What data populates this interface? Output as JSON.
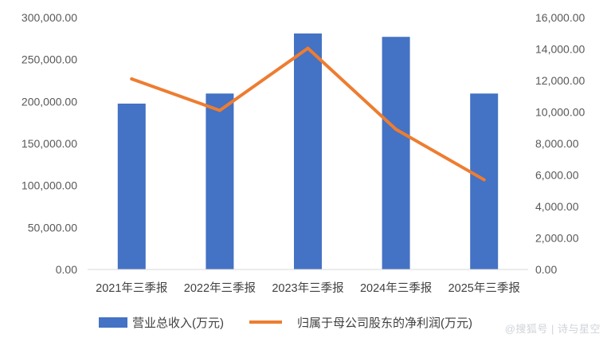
{
  "chart_data": {
    "type": "bar+line",
    "categories": [
      "2021年三季报",
      "2022年三季报",
      "2023年三季报",
      "2024年三季报",
      "2025年三季报"
    ],
    "series": [
      {
        "name": "营业总收入(万元)",
        "type": "bar",
        "axis": "left",
        "color": "#4472C4",
        "values": [
          197500,
          209500,
          281000,
          277000,
          209500
        ]
      },
      {
        "name": "归属于母公司股东的净利润(万元)",
        "type": "line",
        "axis": "right",
        "color": "#ED7D31",
        "values": [
          12100,
          10100,
          14050,
          8900,
          5700
        ]
      }
    ],
    "y_left": {
      "min": 0,
      "max": 300000,
      "step": 50000,
      "ticks": [
        "0.00",
        "50,000.00",
        "100,000.00",
        "150,000.00",
        "200,000.00",
        "250,000.00",
        "300,000.00"
      ]
    },
    "y_right": {
      "min": 0,
      "max": 16000,
      "step": 2000,
      "ticks": [
        "0.00",
        "2,000.00",
        "4,000.00",
        "6,000.00",
        "8,000.00",
        "10,000.00",
        "12,000.00",
        "14,000.00",
        "16,000.00"
      ]
    },
    "grid": false,
    "legend_position": "bottom"
  },
  "watermark": "@搜狐号 | 诗与星空"
}
